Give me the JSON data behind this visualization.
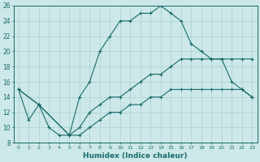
{
  "xlabel": "Humidex (Indice chaleur)",
  "ylabel": "",
  "xlim": [
    -0.5,
    23.5
  ],
  "ylim": [
    8,
    26
  ],
  "xticks": [
    0,
    1,
    2,
    3,
    4,
    5,
    6,
    7,
    8,
    9,
    10,
    11,
    12,
    13,
    14,
    15,
    16,
    17,
    18,
    19,
    20,
    21,
    22,
    23
  ],
  "yticks": [
    8,
    10,
    12,
    14,
    16,
    18,
    20,
    22,
    24,
    26
  ],
  "bg_color": "#cce8e8",
  "line_color": "#1a6b6b",
  "grid_color": "#aad0d0",
  "series": {
    "line1": {
      "x": [
        0,
        1,
        2,
        3,
        4,
        5,
        6,
        7,
        8,
        9,
        10,
        11,
        12,
        13,
        14,
        15,
        16,
        17,
        18,
        19,
        20,
        21,
        22,
        23
      ],
      "y": [
        15,
        11,
        13,
        10,
        9,
        9,
        14,
        16,
        20,
        22,
        24,
        24,
        25,
        25,
        26,
        25,
        24,
        21,
        20,
        19,
        19,
        16,
        15,
        14
      ]
    },
    "line2": {
      "x": [
        0,
        2,
        5,
        6,
        7,
        8,
        9,
        10,
        11,
        12,
        13,
        14,
        15,
        16,
        17,
        18,
        19,
        20,
        21,
        22,
        23
      ],
      "y": [
        15,
        13,
        9,
        10,
        12,
        13,
        14,
        14,
        15,
        16,
        17,
        17,
        18,
        19,
        19,
        19,
        19,
        19,
        19,
        19,
        19
      ]
    },
    "line3": {
      "x": [
        0,
        2,
        5,
        6,
        7,
        8,
        9,
        10,
        11,
        12,
        13,
        14,
        15,
        16,
        17,
        18,
        19,
        20,
        21,
        22,
        23
      ],
      "y": [
        15,
        13,
        9,
        9,
        10,
        11,
        12,
        12,
        13,
        13,
        14,
        14,
        15,
        15,
        15,
        15,
        15,
        15,
        15,
        15,
        14
      ]
    }
  }
}
